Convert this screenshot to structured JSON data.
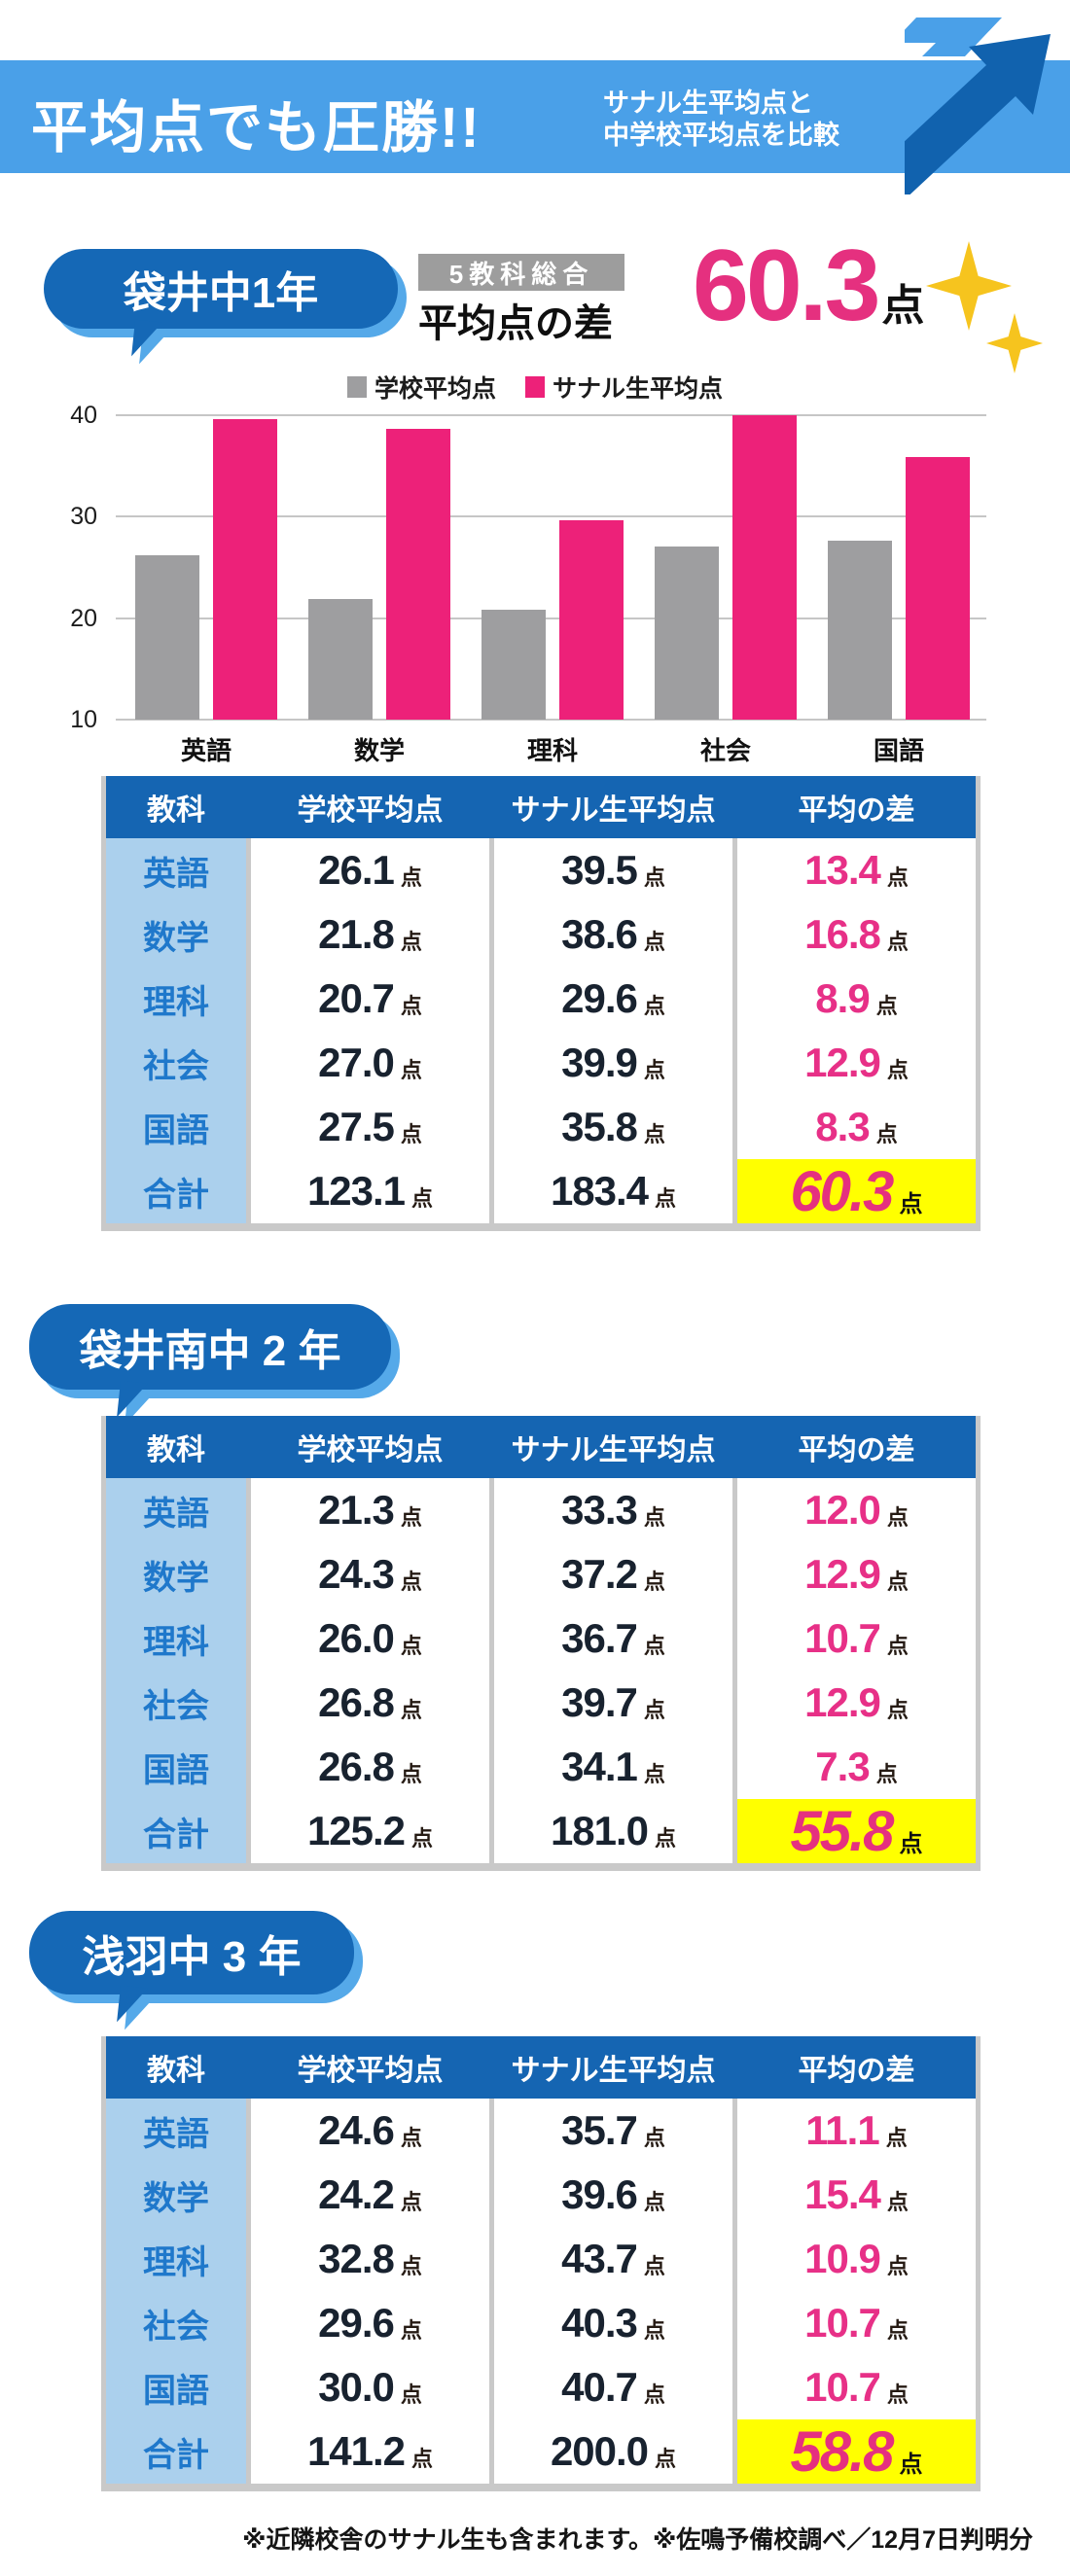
{
  "header": {
    "title": "平均点でも圧勝!!",
    "subtitle_line1": "サナル生平均点と",
    "subtitle_line2": "中学校平均点を比較"
  },
  "summary": {
    "badge": "5教科総合",
    "label": "平均点の差",
    "value": "60.3",
    "unit": "点"
  },
  "chart_data": {
    "type": "bar",
    "title": "",
    "categories": [
      "英語",
      "数学",
      "理科",
      "社会",
      "国語"
    ],
    "series": [
      {
        "name": "学校平均点",
        "color": "#9e9ea0",
        "values": [
          26.1,
          21.8,
          20.7,
          27.0,
          27.5
        ]
      },
      {
        "name": "サナル生平均点",
        "color": "#ed2179",
        "values": [
          39.5,
          38.6,
          29.6,
          39.9,
          35.8
        ]
      }
    ],
    "ylim": [
      10,
      40
    ],
    "yticks": [
      40,
      30,
      20,
      10
    ],
    "grid": true,
    "legend_position": "top"
  },
  "table_columns": [
    "教科",
    "学校平均点",
    "サナル生平均点",
    "平均の差"
  ],
  "unit": "点",
  "sections": [
    {
      "school": "袋井中1年",
      "rows": [
        {
          "subject": "英語",
          "school_avg": "26.1",
          "sanaru_avg": "39.5",
          "diff": "13.4"
        },
        {
          "subject": "数学",
          "school_avg": "21.8",
          "sanaru_avg": "38.6",
          "diff": "16.8"
        },
        {
          "subject": "理科",
          "school_avg": "20.7",
          "sanaru_avg": "29.6",
          "diff": "8.9"
        },
        {
          "subject": "社会",
          "school_avg": "27.0",
          "sanaru_avg": "39.9",
          "diff": "12.9"
        },
        {
          "subject": "国語",
          "school_avg": "27.5",
          "sanaru_avg": "35.8",
          "diff": "8.3"
        }
      ],
      "total": {
        "subject": "合計",
        "school_avg": "123.1",
        "sanaru_avg": "183.4",
        "diff": "60.3"
      }
    },
    {
      "school": "袋井南中 2 年",
      "rows": [
        {
          "subject": "英語",
          "school_avg": "21.3",
          "sanaru_avg": "33.3",
          "diff": "12.0"
        },
        {
          "subject": "数学",
          "school_avg": "24.3",
          "sanaru_avg": "37.2",
          "diff": "12.9"
        },
        {
          "subject": "理科",
          "school_avg": "26.0",
          "sanaru_avg": "36.7",
          "diff": "10.7"
        },
        {
          "subject": "社会",
          "school_avg": "26.8",
          "sanaru_avg": "39.7",
          "diff": "12.9"
        },
        {
          "subject": "国語",
          "school_avg": "26.8",
          "sanaru_avg": "34.1",
          "diff": "7.3"
        }
      ],
      "total": {
        "subject": "合計",
        "school_avg": "125.2",
        "sanaru_avg": "181.0",
        "diff": "55.8"
      }
    },
    {
      "school": "浅羽中 3 年",
      "rows": [
        {
          "subject": "英語",
          "school_avg": "24.6",
          "sanaru_avg": "35.7",
          "diff": "11.1"
        },
        {
          "subject": "数学",
          "school_avg": "24.2",
          "sanaru_avg": "39.6",
          "diff": "15.4"
        },
        {
          "subject": "理科",
          "school_avg": "32.8",
          "sanaru_avg": "43.7",
          "diff": "10.9"
        },
        {
          "subject": "社会",
          "school_avg": "29.6",
          "sanaru_avg": "40.3",
          "diff": "10.7"
        },
        {
          "subject": "国語",
          "school_avg": "30.0",
          "sanaru_avg": "40.7",
          "diff": "10.7"
        }
      ],
      "total": {
        "subject": "合計",
        "school_avg": "141.2",
        "sanaru_avg": "200.0",
        "diff": "58.8"
      }
    }
  ],
  "footer": {
    "note": "※近隣校舎のサナル生も含まれます。※佐鳴予備校調べ／12月7日判明分"
  },
  "colors": {
    "band_blue": "#4aa0e8",
    "dark_blue": "#1565b2",
    "pink": "#e5307f",
    "bar_pink": "#ed2179",
    "bar_gray": "#9e9ea0",
    "highlight_yellow": "#ffff00",
    "light_blue_cell": "#abd0ed",
    "sparkle_gold": "#f6c41e"
  }
}
